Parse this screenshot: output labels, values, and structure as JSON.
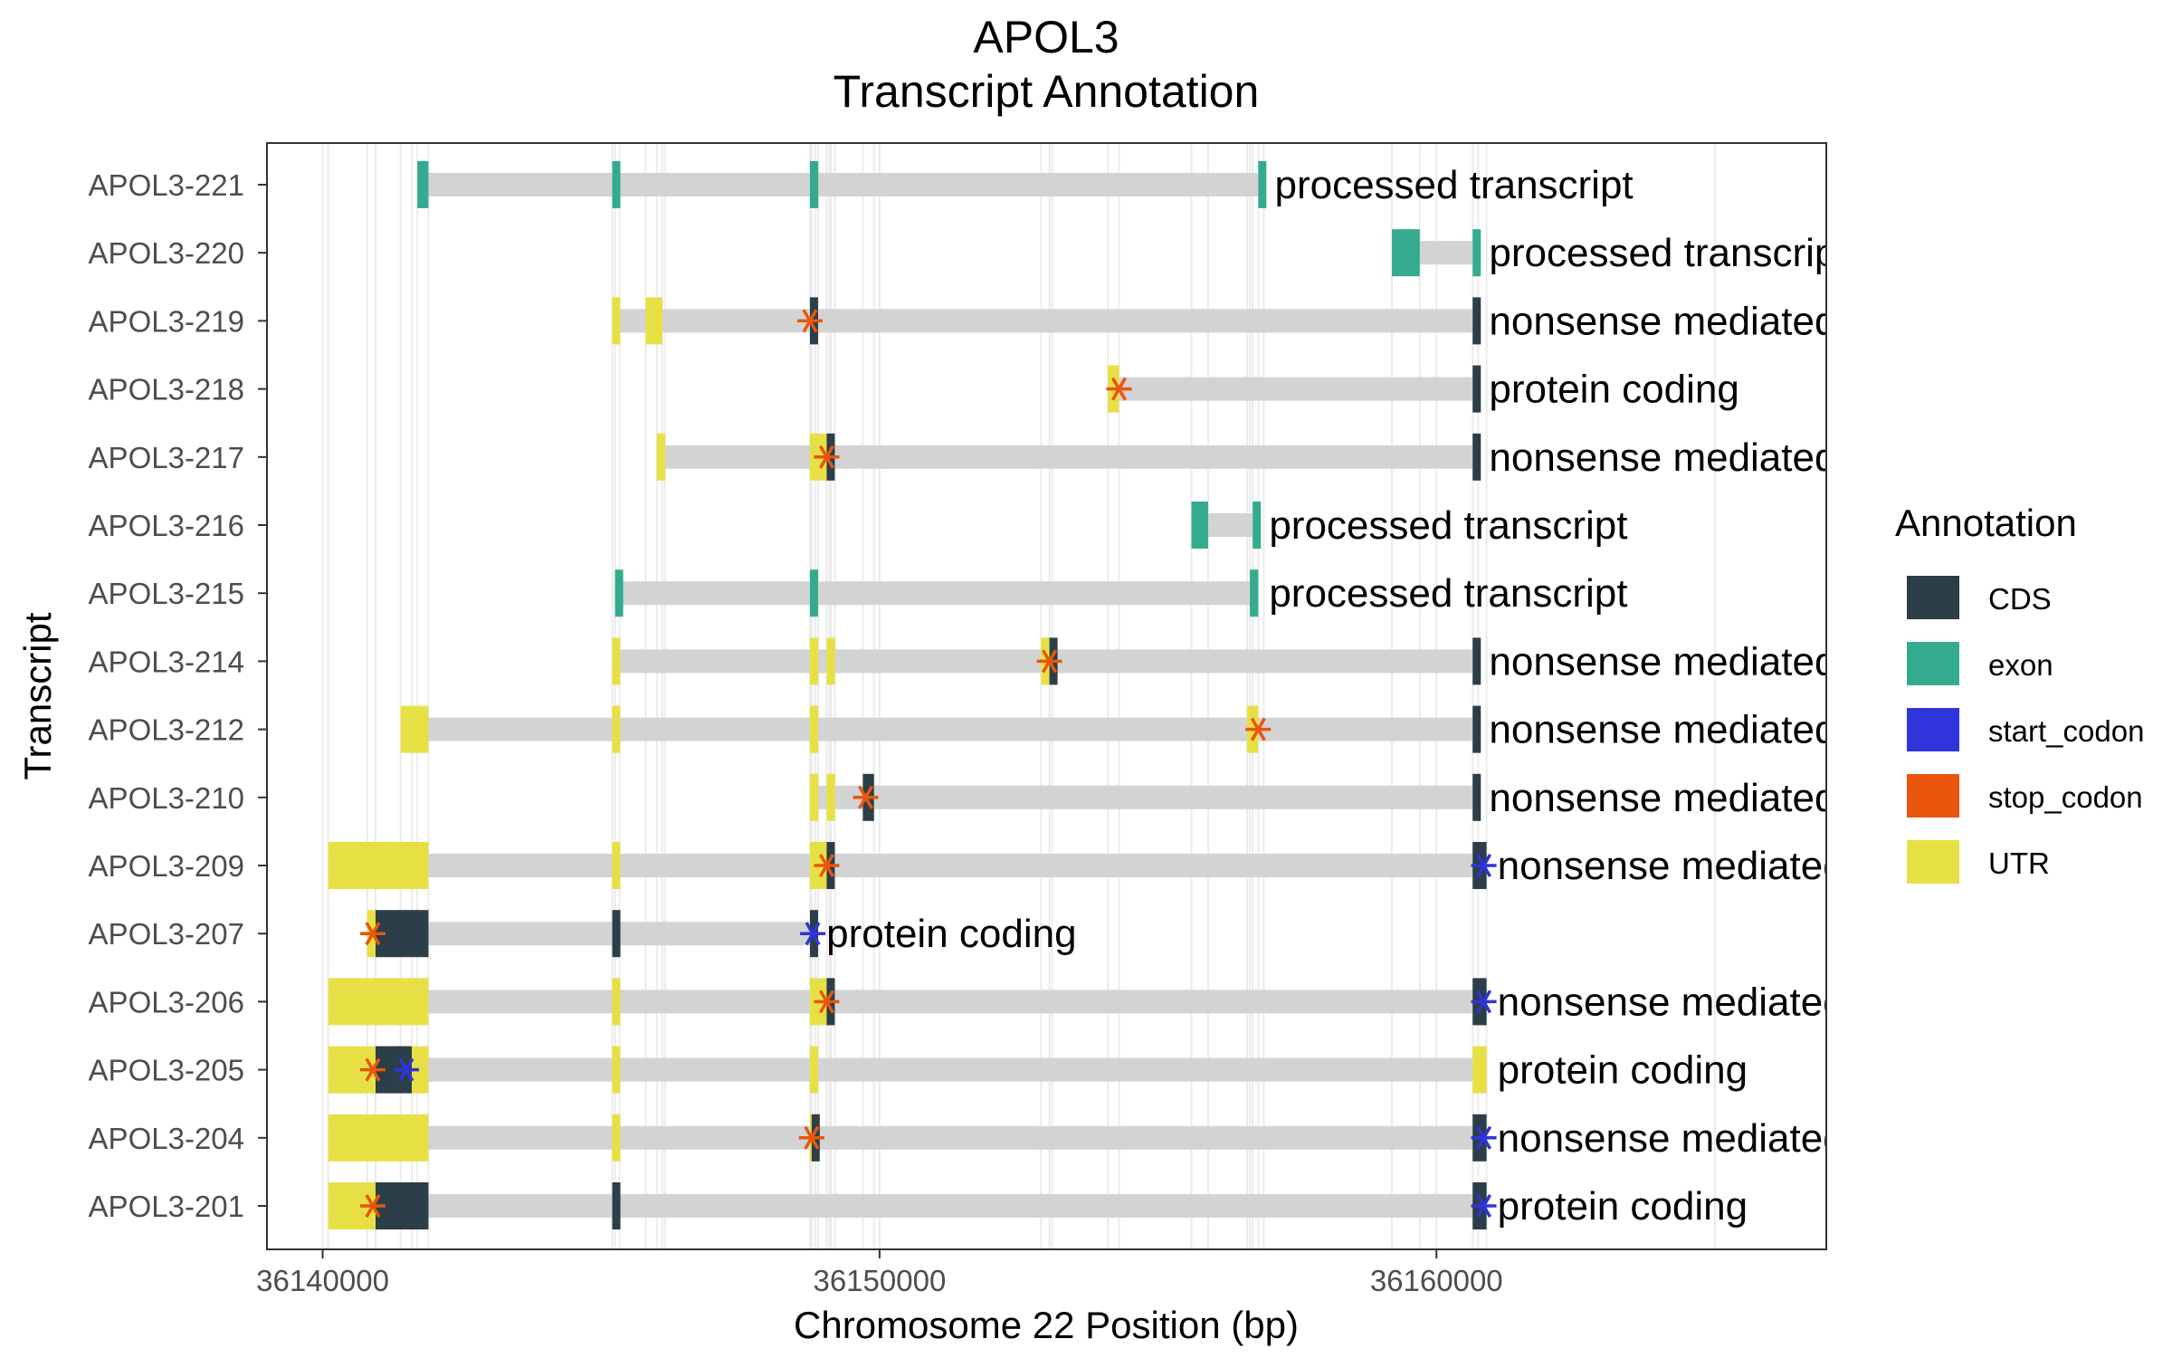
{
  "chart_data": {
    "type": "gene_track",
    "title": "APOL3",
    "subtitle": "Transcript Annotation",
    "xlabel": "Chromosome 22 Position (bp)",
    "ylabel": "Transcript",
    "xlim": [
      36139000,
      36167000
    ],
    "xticks": [
      36140000,
      36150000,
      36160000
    ],
    "xtick_labels": [
      "36140000",
      "36150000",
      "36160000"
    ],
    "grid": true,
    "legend": {
      "title": "Annotation",
      "position": "right",
      "entries": [
        {
          "label": "CDS",
          "color": "#2c3e47"
        },
        {
          "label": "exon",
          "color": "#34ab8e"
        },
        {
          "label": "start_codon",
          "color": "#2f34db"
        },
        {
          "label": "stop_codon",
          "color": "#e9560b"
        },
        {
          "label": "UTR",
          "color": "#e7e045"
        }
      ]
    },
    "intron_color": "#d3d3d3",
    "transcripts": [
      {
        "name": "APOL3-221",
        "type": "processed transcript",
        "start": 36141700,
        "end": 36156900,
        "features": [
          {
            "kind": "exon",
            "start": 36141700,
            "end": 36141900
          },
          {
            "kind": "exon",
            "start": 36145200,
            "end": 36145330
          },
          {
            "kind": "exon",
            "start": 36148750,
            "end": 36148900
          },
          {
            "kind": "exon",
            "start": 36156800,
            "end": 36156900
          }
        ]
      },
      {
        "name": "APOL3-220",
        "type": "processed transcript",
        "start": 36159200,
        "end": 36160750,
        "features": [
          {
            "kind": "exon",
            "start": 36159200,
            "end": 36159700
          },
          {
            "kind": "exon",
            "start": 36160650,
            "end": 36160750
          }
        ]
      },
      {
        "name": "APOL3-219",
        "type": "nonsense mediated decay",
        "start": 36145200,
        "end": 36160750,
        "features": [
          {
            "kind": "UTR",
            "start": 36145200,
            "end": 36145330
          },
          {
            "kind": "UTR",
            "start": 36145800,
            "end": 36146100
          },
          {
            "kind": "CDS",
            "start": 36148750,
            "end": 36148850
          },
          {
            "kind": "CDS",
            "start": 36160650,
            "end": 36160750
          },
          {
            "kind": "stop_codon",
            "pos": 36148750
          }
        ]
      },
      {
        "name": "APOL3-218",
        "type": "protein coding",
        "start": 36154100,
        "end": 36160750,
        "features": [
          {
            "kind": "UTR",
            "start": 36154100,
            "end": 36154300
          },
          {
            "kind": "CDS",
            "start": 36160650,
            "end": 36160750
          },
          {
            "kind": "stop_codon",
            "pos": 36154300
          }
        ]
      },
      {
        "name": "APOL3-217",
        "type": "nonsense mediated decay",
        "start": 36146000,
        "end": 36160750,
        "features": [
          {
            "kind": "UTR",
            "start": 36146000,
            "end": 36146150
          },
          {
            "kind": "UTR",
            "start": 36148750,
            "end": 36149050
          },
          {
            "kind": "CDS",
            "start": 36149050,
            "end": 36149130
          },
          {
            "kind": "CDS",
            "start": 36160650,
            "end": 36160750
          },
          {
            "kind": "stop_codon",
            "pos": 36149050
          }
        ]
      },
      {
        "name": "APOL3-216",
        "type": "processed transcript",
        "start": 36155600,
        "end": 36156800,
        "features": [
          {
            "kind": "exon",
            "start": 36155600,
            "end": 36155900
          },
          {
            "kind": "exon",
            "start": 36156700,
            "end": 36156800
          }
        ]
      },
      {
        "name": "APOL3-215",
        "type": "processed transcript",
        "start": 36145250,
        "end": 36156800,
        "features": [
          {
            "kind": "exon",
            "start": 36145250,
            "end": 36145330
          },
          {
            "kind": "exon",
            "start": 36148750,
            "end": 36148850
          },
          {
            "kind": "exon",
            "start": 36156650,
            "end": 36156800
          }
        ]
      },
      {
        "name": "APOL3-214",
        "type": "nonsense mediated decay",
        "start": 36145200,
        "end": 36160750,
        "features": [
          {
            "kind": "UTR",
            "start": 36145200,
            "end": 36145330
          },
          {
            "kind": "UTR",
            "start": 36148750,
            "end": 36148900
          },
          {
            "kind": "UTR",
            "start": 36149050,
            "end": 36149200
          },
          {
            "kind": "UTR",
            "start": 36152900,
            "end": 36153050
          },
          {
            "kind": "CDS",
            "start": 36153050,
            "end": 36153100
          },
          {
            "kind": "CDS",
            "start": 36160650,
            "end": 36160750
          },
          {
            "kind": "stop_codon",
            "pos": 36153050
          }
        ]
      },
      {
        "name": "APOL3-212",
        "type": "nonsense mediated decay",
        "start": 36141400,
        "end": 36160750,
        "features": [
          {
            "kind": "UTR",
            "start": 36141400,
            "end": 36141900
          },
          {
            "kind": "UTR",
            "start": 36145200,
            "end": 36145330
          },
          {
            "kind": "UTR",
            "start": 36148750,
            "end": 36148850
          },
          {
            "kind": "UTR",
            "start": 36156600,
            "end": 36156800
          },
          {
            "kind": "CDS",
            "start": 36160650,
            "end": 36160750
          },
          {
            "kind": "stop_codon",
            "pos": 36156800
          }
        ]
      },
      {
        "name": "APOL3-210",
        "type": "nonsense mediated decay",
        "start": 36148750,
        "end": 36160750,
        "features": [
          {
            "kind": "UTR",
            "start": 36148750,
            "end": 36148850
          },
          {
            "kind": "UTR",
            "start": 36149050,
            "end": 36149200
          },
          {
            "kind": "CDS",
            "start": 36149700,
            "end": 36149900
          },
          {
            "kind": "CDS",
            "start": 36160650,
            "end": 36160750
          },
          {
            "kind": "stop_codon",
            "pos": 36149750
          }
        ]
      },
      {
        "name": "APOL3-209",
        "type": "nonsense mediated decay",
        "start": 36140100,
        "end": 36160900,
        "features": [
          {
            "kind": "UTR",
            "start": 36140100,
            "end": 36141900
          },
          {
            "kind": "UTR",
            "start": 36145200,
            "end": 36145330
          },
          {
            "kind": "UTR",
            "start": 36148750,
            "end": 36149100
          },
          {
            "kind": "CDS",
            "start": 36149050,
            "end": 36149130
          },
          {
            "kind": "CDS",
            "start": 36160650,
            "end": 36160900
          },
          {
            "kind": "stop_codon",
            "pos": 36149050
          },
          {
            "kind": "start_codon",
            "pos": 36160850
          }
        ]
      },
      {
        "name": "APOL3-207",
        "type": "protein coding",
        "start": 36140800,
        "end": 36148850,
        "features": [
          {
            "kind": "UTR",
            "start": 36140800,
            "end": 36140950
          },
          {
            "kind": "CDS",
            "start": 36140950,
            "end": 36141900
          },
          {
            "kind": "CDS",
            "start": 36145200,
            "end": 36145330
          },
          {
            "kind": "CDS",
            "start": 36148750,
            "end": 36148850
          },
          {
            "kind": "stop_codon",
            "pos": 36140900
          },
          {
            "kind": "start_codon",
            "pos": 36148800
          }
        ]
      },
      {
        "name": "APOL3-206",
        "type": "nonsense mediated decay",
        "start": 36140100,
        "end": 36160900,
        "features": [
          {
            "kind": "UTR",
            "start": 36140100,
            "end": 36141900
          },
          {
            "kind": "UTR",
            "start": 36145200,
            "end": 36145330
          },
          {
            "kind": "UTR",
            "start": 36148750,
            "end": 36149100
          },
          {
            "kind": "CDS",
            "start": 36149050,
            "end": 36149130
          },
          {
            "kind": "CDS",
            "start": 36160650,
            "end": 36160900
          },
          {
            "kind": "stop_codon",
            "pos": 36149050
          },
          {
            "kind": "start_codon",
            "pos": 36160850
          }
        ]
      },
      {
        "name": "APOL3-205",
        "type": "protein coding",
        "start": 36140100,
        "end": 36160900,
        "features": [
          {
            "kind": "UTR",
            "start": 36140100,
            "end": 36140950
          },
          {
            "kind": "CDS",
            "start": 36140950,
            "end": 36141600
          },
          {
            "kind": "UTR",
            "start": 36141600,
            "end": 36141900
          },
          {
            "kind": "UTR",
            "start": 36145200,
            "end": 36145330
          },
          {
            "kind": "UTR",
            "start": 36148750,
            "end": 36148850
          },
          {
            "kind": "UTR",
            "start": 36160650,
            "end": 36160900
          },
          {
            "kind": "stop_codon",
            "pos": 36140900
          },
          {
            "kind": "start_codon",
            "pos": 36141500
          }
        ]
      },
      {
        "name": "APOL3-204",
        "type": "nonsense mediated decay",
        "start": 36140100,
        "end": 36160900,
        "features": [
          {
            "kind": "UTR",
            "start": 36140100,
            "end": 36141900
          },
          {
            "kind": "UTR",
            "start": 36145200,
            "end": 36145330
          },
          {
            "kind": "UTR",
            "start": 36148750,
            "end": 36148850
          },
          {
            "kind": "CDS",
            "start": 36148780,
            "end": 36148850
          },
          {
            "kind": "CDS",
            "start": 36160650,
            "end": 36160900
          },
          {
            "kind": "stop_codon",
            "pos": 36148780
          },
          {
            "kind": "start_codon",
            "pos": 36160850
          }
        ]
      },
      {
        "name": "APOL3-201",
        "type": "protein coding",
        "start": 36140100,
        "end": 36160900,
        "features": [
          {
            "kind": "UTR",
            "start": 36140100,
            "end": 36140950
          },
          {
            "kind": "CDS",
            "start": 36140950,
            "end": 36141900
          },
          {
            "kind": "CDS",
            "start": 36145200,
            "end": 36145330
          },
          {
            "kind": "CDS",
            "start": 36160650,
            "end": 36160900
          },
          {
            "kind": "stop_codon",
            "pos": 36140900
          },
          {
            "kind": "start_codon",
            "pos": 36160850
          }
        ]
      }
    ]
  }
}
